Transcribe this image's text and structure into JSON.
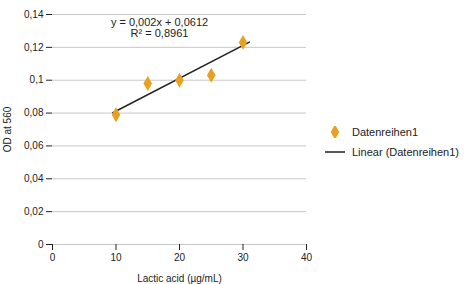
{
  "chart_data": {
    "type": "scatter",
    "x_label": "Lactic acid (µg/mL)",
    "y_label": "OD at 560",
    "annotations": [
      "y = 0,002x + 0,0612",
      "R² = 0,8961"
    ],
    "series": [
      {
        "name": "Datenreihen1",
        "type": "scatter",
        "color": "#E8A020",
        "marker": "diamond",
        "x": [
          10,
          15,
          20,
          25,
          30
        ],
        "values": [
          0.079,
          0.098,
          0.1,
          0.103,
          0.123
        ]
      },
      {
        "name": "Linear (Datenreihen1)",
        "type": "line",
        "color": "#222222",
        "x": [
          9.5,
          31.0
        ],
        "values": [
          0.0802,
          0.1232
        ]
      }
    ],
    "xlim": [
      0,
      40
    ],
    "xticks": [
      0,
      10,
      20,
      30,
      40
    ],
    "ylim": [
      0,
      0.14
    ],
    "yticks": [
      0,
      {
        "value": 0.02,
        "label": "0,02"
      },
      {
        "value": 0.04,
        "label": "0,04"
      },
      {
        "value": 0.06,
        "label": "0,06"
      },
      {
        "value": 0.08,
        "label": "0,08"
      },
      {
        "value": 0.1,
        "label": "0,1"
      },
      {
        "value": 0.12,
        "label": "0,12"
      },
      {
        "value": 0.14,
        "label": "0,14"
      }
    ],
    "grid": "y",
    "legend": "right"
  }
}
